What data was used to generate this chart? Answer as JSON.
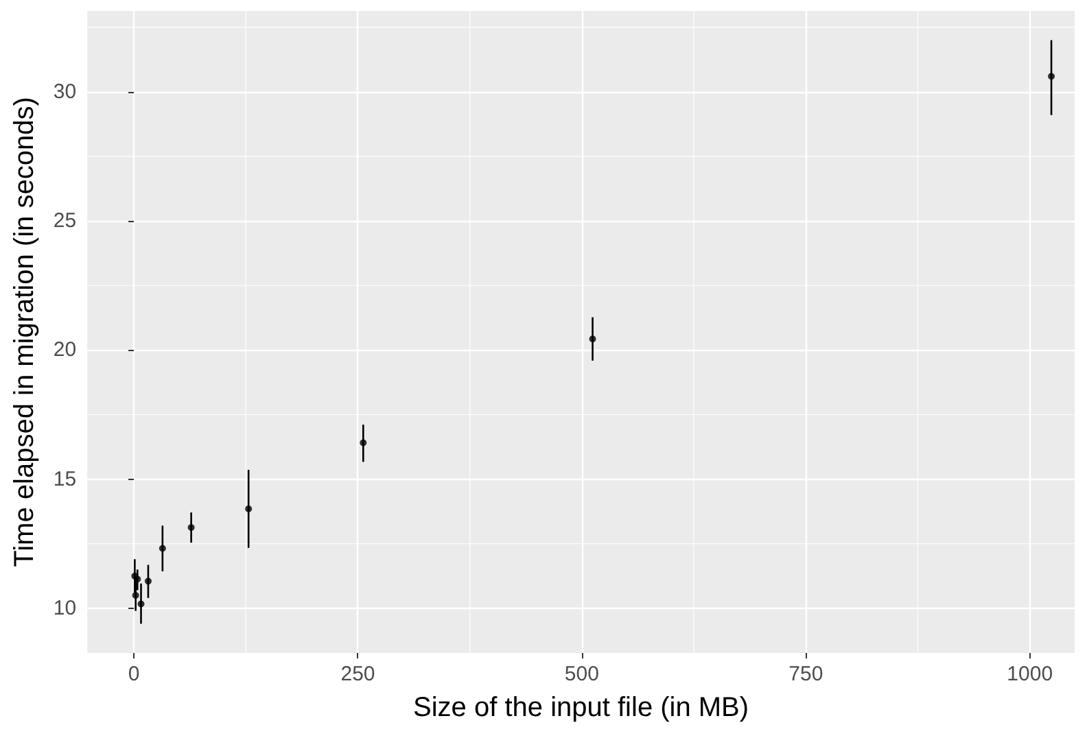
{
  "chart_data": {
    "type": "scatter",
    "xlabel": "Size of the input file (in MB)",
    "ylabel": "Time elapsed in migration (in seconds)",
    "x": [
      1,
      2,
      4,
      8,
      16,
      32,
      64,
      128,
      256,
      512,
      1024
    ],
    "values": [
      11.25,
      10.5,
      11.13,
      10.17,
      11.05,
      12.32,
      13.13,
      13.85,
      16.41,
      20.43,
      30.6
    ],
    "errors": [
      [
        10.6,
        11.9
      ],
      [
        9.9,
        11.2
      ],
      [
        10.7,
        11.5
      ],
      [
        9.4,
        10.96
      ],
      [
        10.4,
        11.68
      ],
      [
        11.43,
        13.2
      ],
      [
        12.54,
        13.71
      ],
      [
        12.34,
        15.36
      ],
      [
        15.67,
        17.11
      ],
      [
        19.59,
        21.27
      ],
      [
        29.1,
        32.0
      ]
    ],
    "color": "#000000",
    "marker": "circle",
    "xlim": [
      -52,
      1050
    ],
    "ylim": [
      8.27,
      33.13
    ],
    "xticks": [
      0,
      250,
      500,
      750,
      1000
    ],
    "yticks": [
      10,
      15,
      20,
      25,
      30
    ],
    "grid": true
  }
}
